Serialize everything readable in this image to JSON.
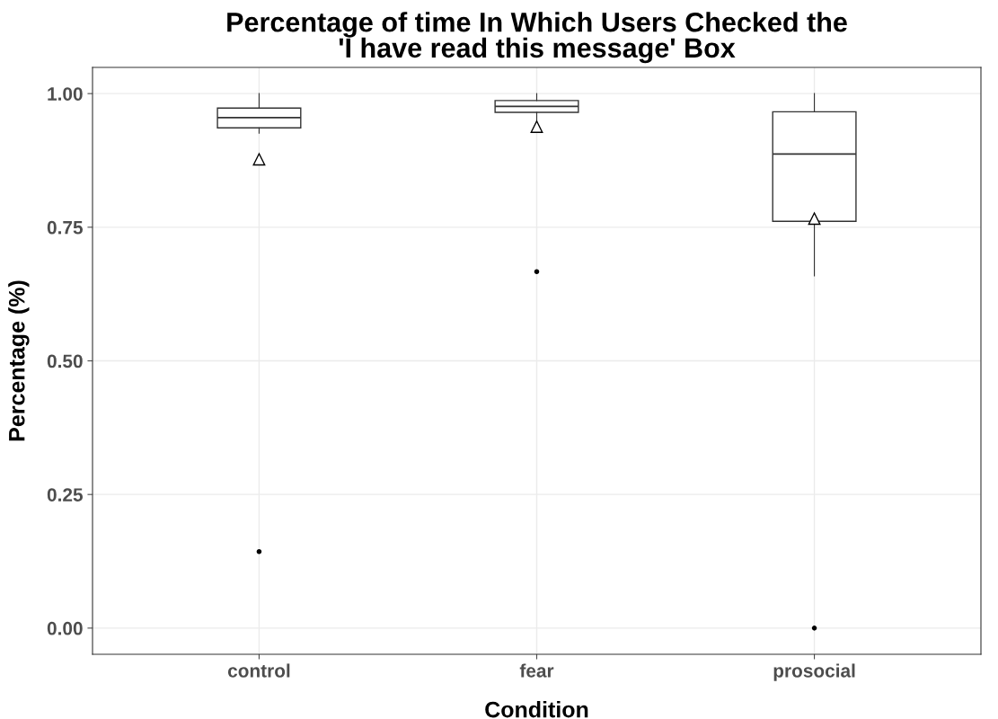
{
  "chart_data": {
    "type": "box",
    "title": "Percentage of time In Which Users Checked the\n'I have read this message' Box",
    "xlabel": "Condition",
    "ylabel": "Percentage (%)",
    "categories": [
      "control",
      "fear",
      "prosocial"
    ],
    "boxes": [
      {
        "low": 0.926,
        "q1": 0.936,
        "median": 0.955,
        "q3": 0.973,
        "high": 1.0,
        "mean": 0.877,
        "outliers": [
          0.143
        ]
      },
      {
        "low": 0.94,
        "q1": 0.965,
        "median": 0.976,
        "q3": 0.987,
        "high": 1.0,
        "mean": 0.938,
        "outliers": [
          0.667
        ]
      },
      {
        "low": 0.659,
        "q1": 0.761,
        "median": 0.887,
        "q3": 0.966,
        "high": 1.0,
        "mean": 0.766,
        "outliers": [
          0.0
        ]
      }
    ],
    "color": "#ffffff",
    "ylim": [
      -0.049,
      1.049
    ],
    "yticks": [
      {
        "value": 0,
        "label": "0.00"
      },
      {
        "value": 0.25,
        "label": "0.25"
      },
      {
        "value": 0.5,
        "label": "0.50"
      },
      {
        "value": 0.75,
        "label": "0.75"
      },
      {
        "value": 1,
        "label": "1.00"
      }
    ],
    "grid": true
  }
}
